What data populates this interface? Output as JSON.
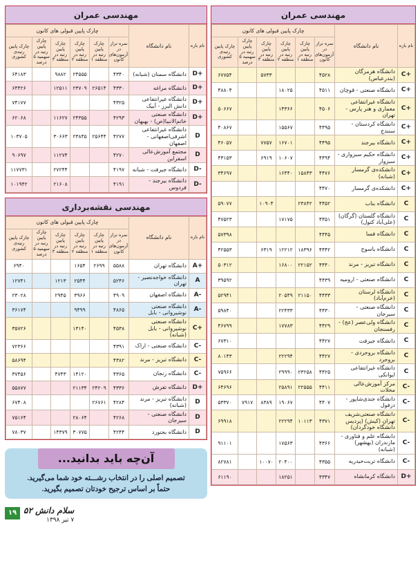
{
  "column_headers": {
    "band": "نام بازه",
    "university": "نام دانشگاه",
    "group": "چارک پایین قبولی های کانون",
    "score": "نمره تراز در آزمون‌های کانون",
    "region1": "چارک پایین رتبه در منطقه ۱",
    "region2": "چارک پایین رتبه در منطقه ۲",
    "region3": "چارک پایین رتبه در منطقه ۳",
    "quota5": "چارک پایین رتبه در سهمیه ۵ درصد",
    "national": "چارک پایین رتبه‌ی کشوری"
  },
  "row_colors": {
    "A": "#dcedf7",
    "C": "#fdf5cf",
    "D": "#fbe0e6"
  },
  "accent_border": "#c8334a",
  "title_bg": "#dcc3e3",
  "tables": [
    {
      "id": "right",
      "title": "مهندسی عمران",
      "highlighted_rows": [
        0,
        2,
        4,
        6,
        8,
        10,
        12,
        14,
        16,
        18,
        20,
        22,
        25
      ],
      "rows": [
        [
          "C+",
          "دانشگاه هرمزگان (بندرعباس)",
          "۴۵۲۸",
          "",
          "",
          "۵۷۳۳",
          "",
          "۶۷۷۵۴"
        ],
        [
          "C+",
          "دانشگاه صنعتی - قوچان",
          "۴۵۱۱",
          "",
          "۱۸۰۲۵",
          "",
          "",
          "۴۸۸۰۴"
        ],
        [
          "C+",
          "دانشگاه غیرانتفاعی معماری و هنر پارس - تهران",
          "۴۵۰۶",
          "",
          "۱۴۳۶۶",
          "",
          "",
          "۵۰۶۶۷"
        ],
        [
          "C+",
          "دانشگاه کردستان - سنندج",
          "۴۴۹۵",
          "",
          "۱۵۵۶۷",
          "",
          "",
          "۴۰۸۶۷"
        ],
        [
          "C+",
          "دانشگاه بیرجند",
          "۴۴۹۵",
          "",
          "۱۶۷۰۱",
          "۷۷۵۷",
          "",
          "۴۶۰۵۷"
        ],
        [
          "C+",
          "دانشگاه حکیم سبزواری - سبزوار",
          "۴۴۹۴",
          "",
          "۱۰۶۰۷",
          "۶۹۱۹",
          "",
          "۴۳۱۵۳"
        ],
        [
          "C+",
          "دانشکده‌ی گرمسار (شبانه)",
          "۴۴۷۶",
          "۱۵۸۴۳",
          "۱۶۴۴۰",
          "",
          "",
          "۳۴۶۹۷"
        ],
        [
          "C+",
          "دانشکده‌ی گرمسار",
          "۴۴۷۰",
          "",
          "",
          "",
          "",
          ""
        ],
        [
          "C",
          "دانشگاه بناب",
          "۴۴۵۲",
          "۲۳۸۴۲",
          "",
          "۱۰۹۰۴",
          "",
          "۵۹۰۷۷"
        ],
        [
          "C",
          "دانشگاه گلستان (گرگان) (علی‌آباد کتول)",
          "۴۴۵۱",
          "",
          "۱۷۱۷۵",
          "",
          "",
          "۴۷۵۲۳"
        ],
        [
          "C",
          "دانشگاه فسا",
          "۴۴۴۵",
          "",
          "",
          "",
          "",
          "۵۷۳۹۸"
        ],
        [
          "C",
          "دانشگاه یاسوج",
          "۴۴۴۲",
          "۱۸۳۹۶",
          "۱۲۲۱۲",
          "۶۳۱۹",
          "",
          "۴۲۵۵۳"
        ],
        [
          "C",
          "دانشگاه تبریز - مرند",
          "۴۴۴۰",
          "۲۲۱۵۲",
          "۱۶۸۰۰",
          "",
          "",
          "۵۰۳۱۲"
        ],
        [
          "C",
          "دانشگاه صنعتی - ارومیه",
          "۴۴۳۹",
          "",
          "",
          "",
          "",
          "۳۹۵۹۲"
        ],
        [
          "C",
          "دانشگاه لرستان (خرم‌آباد)",
          "۴۴۳۳",
          "۲۱۱۵۰",
          "۲۰۵۴۹",
          "",
          "",
          "۵۲۹۴۱"
        ],
        [
          "C",
          "دانشگاه صنعتی - سیرجان",
          "۴۴۳۰",
          "",
          "۲۲۴۳۳",
          "",
          "",
          "۵۹۸۴۰"
        ],
        [
          "C",
          "دانشگاه ولی‌عصر (عج) - رفسنجان",
          "۴۴۲۹",
          "",
          "۱۷۷۸۳",
          "",
          "",
          "۴۶۷۹۹"
        ],
        [
          "C",
          "دانشگاه جیرفت",
          "۴۴۲۷",
          "",
          "",
          "",
          "",
          "۶۷۳۱۰"
        ],
        [
          "C",
          "دانشگاه بروجردی - بروجرد",
          "۴۴۲۷",
          "",
          "۲۲۲۹۴",
          "",
          "",
          "۸۰۱۴۳"
        ],
        [
          "C",
          "دانشگاه غیرانتفاعی ایوانکی",
          "۴۴۲۵",
          "۲۳۲۵۸",
          "۲۹۹۹۰",
          "",
          "",
          "۷۵۹۶۶"
        ],
        [
          "C-",
          "مرکز آموزش‌عالی محلات",
          "۴۴۱۱",
          "۲۲۵۵۵",
          "۲۵۸۹۱",
          "",
          "",
          "۶۴۶۹۶"
        ],
        [
          "C-",
          "دانشگاه جندی‌شاپور - دزفول",
          "۴۴۰۷",
          "",
          "۱۹۰۶۷",
          "۸۳۸۹",
          "۷۹۱۷",
          "۵۳۳۷۰"
        ],
        [
          "C-",
          "دانشگاه صنعتی‌شریف تهران (کیش) (پردیس دانشگاه خودگردان)",
          "۴۳۷۱",
          "۱۰۱۱۳",
          "۲۲۲۹۴",
          "",
          "",
          "۶۹۹۱۸"
        ],
        [
          "C-",
          "دانشگاه علم و فناوری - مازندران (بهشهر) (شبانه)",
          "۴۳۶۶",
          "",
          "۱۷۵۶۳",
          "",
          "",
          "۹۱۱۰۱"
        ],
        [
          "C-",
          "دانشگاه تربت‌حیدریه",
          "۴۳۵۵",
          "",
          "۲۰۴۰۰",
          "۱۰۰۷۰",
          "",
          "۸۲۷۸۱"
        ],
        [
          "D+",
          "دانشگاه کرمانشاه",
          "۴۳۴۷",
          "",
          "۱۸۲۵۱",
          "",
          "",
          "۶۱۱۹۰"
        ]
      ]
    },
    {
      "id": "civil",
      "title": "مهندسی عمران",
      "highlighted_rows": [
        1,
        3,
        5,
        7
      ],
      "rows": [
        [
          "D+",
          "دانشگاه سمنان (شبانه)",
          "۴۳۴۰",
          "",
          "۲۴۵۵۵",
          "۹۸۸۲",
          "",
          "۶۴۱۸۳"
        ],
        [
          "D+",
          "دانشگاه مراغه",
          "۴۳۳۰",
          "۲۶۵۱۴",
          "۲۳۷۰۹",
          "۱۲۵۱۱",
          "",
          "۶۴۴۲۶"
        ],
        [
          "D+",
          "دانشگاه غیرانتفاعی دانش البرز - آبیک",
          "۴۳۲۵",
          "",
          "",
          "",
          "",
          "۷۴۱۷۷"
        ],
        [
          "D+",
          "دانشگاه صنعتی خاتم‌الانبیا(ص) - بهبهان",
          "۴۲۹۳",
          "",
          "۲۴۳۵۵",
          "۱۱۶۲۷",
          "",
          "۶۲۰۶۸"
        ],
        [
          "D",
          "دانشگاه غیرانتفاعی اشرفی‌اصفهانی - اصفهان",
          "۴۲۷۷",
          "۲۵۶۴۴",
          "۲۳۸۴۵",
          "۳۰۶۶۳",
          "",
          "۱۰۳۷۰۵"
        ],
        [
          "D",
          "مجتمع آموزش‌عالی اسفراین",
          "۴۲۷۰",
          "",
          "",
          "۱۱۲۷۴",
          "",
          "۹۰۶۹۷"
        ],
        [
          "D-",
          "دانشگاه جیرفت - شبانه",
          "۴۱۹۷",
          "",
          "",
          "۲۷۲۴۴",
          "",
          "۱۱۷۷۳۱"
        ],
        [
          "D-",
          "دانشگاه بیرجند - فردوس",
          "۴۱۹۱",
          "",
          "",
          "۲۱۶۰۸",
          "",
          "۱۰۱۹۴۲"
        ]
      ]
    },
    {
      "id": "survey",
      "title": "مهندسی نقشه‌برداری",
      "highlighted_rows": [
        1,
        3,
        4,
        6,
        8,
        10
      ],
      "rows": [
        [
          "A+",
          "دانشگاه تهران",
          "۵۵۸۸",
          "۲۶۹۹",
          "۱۶۵۴",
          "",
          "",
          "۶۹۴۰"
        ],
        [
          "A",
          "دانشگاه خواجه‌نصیر - تهران",
          "۵۲۴۶",
          "",
          "۲۵۴۴",
          "۱۲۱۳",
          "",
          "۱۲۷۴۱"
        ],
        [
          "A-",
          "دانشگاه اصفهان",
          "۴۹۰۹",
          "",
          "۳۹۶۶",
          "۲۹۴۵",
          "",
          "۲۳۰۲۸"
        ],
        [
          "A-",
          "دانشگاه صنعتی نوشیروانی - بابل",
          "۴۸۶۵",
          "",
          "۹۴۹۹",
          "",
          "",
          "۳۶۱۷۴"
        ],
        [
          "C+",
          "دانشگاه صنعتی نوشیروانی - بابل (شبانه)",
          "۴۵۳۸",
          "",
          "۱۳۱۴۰",
          "",
          "",
          "۳۵۷۲۶"
        ],
        [
          "C-",
          "دانشگاه صنعتی - اراک",
          "۴۳۹۱",
          "",
          "",
          "",
          "",
          "۷۲۳۶۶"
        ],
        [
          "C-",
          "دانشگاه تبریز - مرند",
          "۴۳۸۲",
          "",
          "",
          "",
          "",
          "۵۸۶۹۴"
        ],
        [
          "C-",
          "دانشگاه زنجان",
          "۴۳۶۵",
          "",
          "۱۴۱۲۰",
          "۴۷۴۳",
          "",
          "۳۷۴۵۶"
        ],
        [
          "D+",
          "دانشگاه تفرش",
          "۴۳۳۶",
          "۲۴۲۰۹",
          "۲۱۱۳۴",
          "",
          "",
          "۵۵۸۷۷"
        ],
        [
          "D",
          "دانشگاه تبریز - مرند (شبانه)",
          "۴۲۸۴",
          "۲۶۷۶۱",
          "",
          "",
          "",
          "۶۷۴۰۸"
        ],
        [
          "D",
          "دانشگاه صنعتی - سیرجان",
          "۴۲۶۸",
          "",
          "۲۸۰۶۴",
          "",
          "",
          "۷۵۱۶۴"
        ],
        [
          "D",
          "دانشگاه بجنورد",
          "۴۲۴۴",
          "",
          "۳۰۷۷۵",
          "۱۴۳۷۹",
          "",
          "۷۸۰۳۷"
        ]
      ]
    }
  ],
  "notice": {
    "title": "آن‌چه باید بدانید...",
    "line1": "تصمیم اصلی را در انتخاب رشـــته خود شما می‌گیرید.",
    "line2": "حتماً بر اساس ترجیح خودتان تصمیم بگیرید."
  },
  "footer": {
    "page_number": "۱۹",
    "publication": "سلام دانش ۵۲",
    "date": "۷ تیر ۱۳۹۸"
  }
}
